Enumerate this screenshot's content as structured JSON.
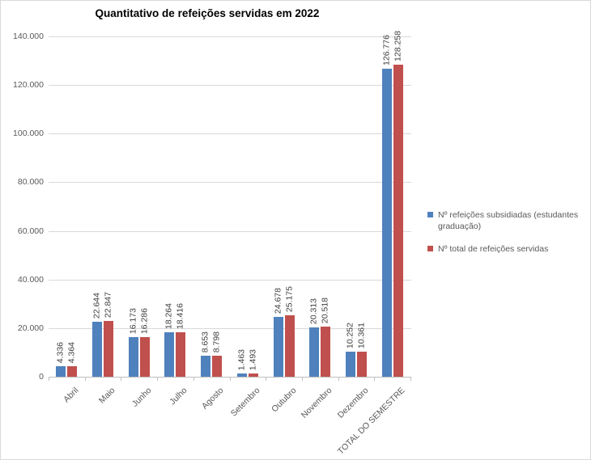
{
  "chart_data": {
    "type": "bar",
    "title": "Quantitativo de refeições servidas em 2022",
    "categories": [
      "Abril",
      "Maio",
      "Junho",
      "Julho",
      "Agosto",
      "Setembro",
      "Outubro",
      "Novembro",
      "Dezembro",
      "TOTAL DO SEMESTRE"
    ],
    "series": [
      {
        "name": "Nº refeições subsidiadas (estudantes graduação)",
        "color": "#4F81BD",
        "values": [
          4336,
          22644,
          16173,
          18264,
          8653,
          1463,
          24678,
          20313,
          10252,
          126776
        ],
        "labels": [
          "4.336",
          "22.644",
          "16.173",
          "18.264",
          "8.653",
          "1.463",
          "24.678",
          "20.313",
          "10.252",
          "126.776"
        ]
      },
      {
        "name": "Nº total de refeições servidas",
        "color": "#C0504D",
        "values": [
          4364,
          22847,
          16286,
          18416,
          8798,
          1493,
          25175,
          20518,
          10361,
          128258
        ],
        "labels": [
          "4.364",
          "22.847",
          "16.286",
          "18.416",
          "8.798",
          "1.493",
          "25.175",
          "20.518",
          "10.361",
          "128.258"
        ]
      }
    ],
    "xlabel": "",
    "ylabel": "",
    "ylim": [
      0,
      140000
    ],
    "yticks": [
      0,
      20000,
      40000,
      60000,
      80000,
      100000,
      120000,
      140000
    ],
    "ytick_labels": [
      "0",
      "20.000",
      "40.000",
      "60.000",
      "80.000",
      "100.000",
      "120.000",
      "140.000"
    ],
    "grid": true,
    "legend_position": "right",
    "style": {
      "grid_color": "#D9D9D9",
      "axis_color": "#BFBFBF",
      "data_label_color": "#404040",
      "axis_label_color": "#595959",
      "title_color": "#000000",
      "background_color": "#FFFFFF"
    }
  }
}
